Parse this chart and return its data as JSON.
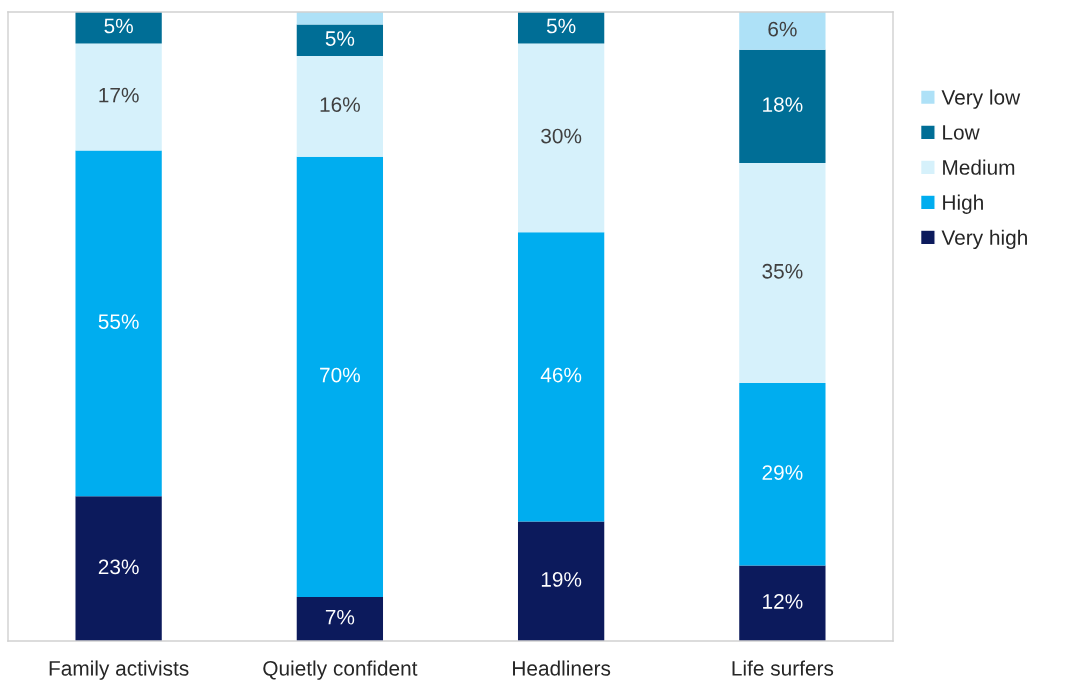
{
  "chart_data": {
    "type": "bar",
    "stacked": true,
    "categories": [
      "Family activists",
      "Quietly confident",
      "Headliners",
      "Life surfers"
    ],
    "series": [
      {
        "name": "Very high",
        "color": "#0c1a5c",
        "values": [
          23,
          7,
          19,
          12
        ],
        "value_labels": [
          "23%",
          "7%",
          "19%",
          "12%"
        ]
      },
      {
        "name": "High",
        "color": "#00adef",
        "values": [
          55,
          70,
          46,
          29
        ],
        "value_labels": [
          "55%",
          "70%",
          "46%",
          "29%"
        ]
      },
      {
        "name": "Medium",
        "color": "#d6f1fb",
        "values": [
          17,
          16,
          30,
          35
        ],
        "value_labels": [
          "17%",
          "16%",
          "30%",
          "35%"
        ]
      },
      {
        "name": "Low",
        "color": "#006e96",
        "values": [
          5,
          5,
          5,
          18
        ],
        "value_labels": [
          "5%",
          "5%",
          "5%",
          "18%"
        ]
      },
      {
        "name": "Very low",
        "color": "#aee1f7",
        "values": [
          0,
          2,
          0,
          6
        ],
        "value_labels": [
          null,
          null,
          null,
          "6%"
        ]
      }
    ],
    "ylim": [
      0,
      100
    ],
    "tick_labels": "x",
    "legend": "right",
    "grid": false
  }
}
